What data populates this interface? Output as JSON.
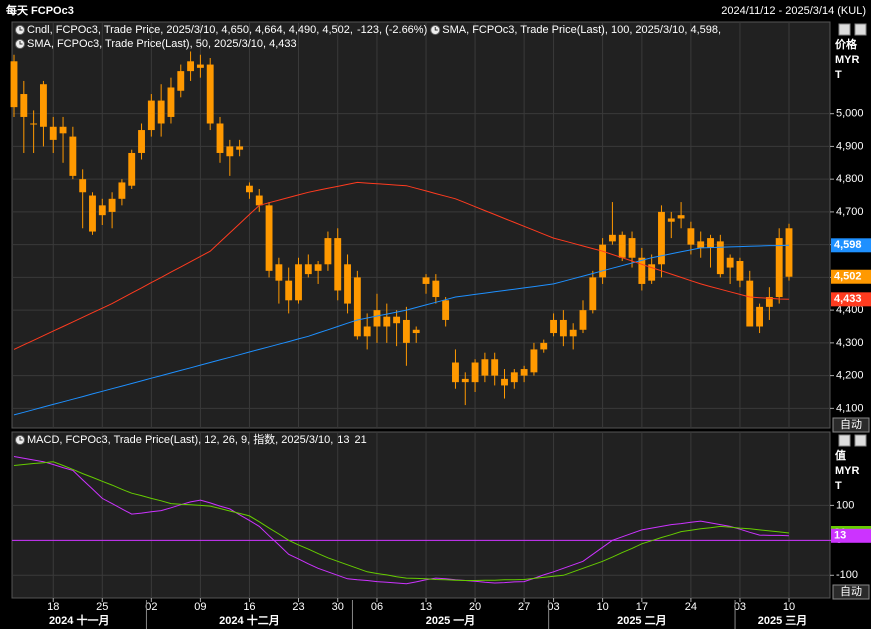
{
  "header": {
    "title": "每天 FCPOc3",
    "range": "2024/11/12 - 2025/3/14 (KUL)"
  },
  "chart_data": [
    {
      "type": "candlestick",
      "legend": [
        {
          "text": "Cndl, FCPOc3, Trade Price, 2025/3/10, 4,650, 4,664, 4,490, 4,502,",
          "color": "#ff9a1f"
        },
        {
          "text": "-123, (-2.66%)",
          "color": "#ff3030"
        }
      ],
      "y_unit": [
        "价格",
        "MYR",
        "T"
      ],
      "autoscale_label": "自动",
      "categories": [
        null,
        null,
        null,
        null,
        "18",
        null,
        null,
        null,
        null,
        "25",
        null,
        null,
        null,
        null,
        "02",
        null,
        null,
        null,
        null,
        "09",
        null,
        null,
        null,
        null,
        "16",
        null,
        null,
        null,
        null,
        "23",
        null,
        null,
        null,
        "30",
        null,
        null,
        null,
        "06",
        null,
        null,
        null,
        null,
        "13",
        null,
        null,
        null,
        null,
        "20",
        null,
        null,
        null,
        null,
        "27",
        null,
        null,
        "03",
        null,
        null,
        null,
        null,
        "10",
        null,
        null,
        null,
        "17",
        null,
        null,
        null,
        null,
        "24",
        null,
        null,
        null,
        null,
        "03",
        null,
        null,
        null,
        null,
        "10"
      ],
      "months": [
        "2024 十一月",
        "2024 十二月",
        "2025 一月",
        "2025 二月",
        "2025 三月"
      ],
      "color": "#ff9900",
      "last_label": "4,502",
      "open": [
        5160,
        5060,
        4970,
        4960,
        4960,
        4940,
        4930,
        4800,
        4750,
        4690,
        4700,
        4740,
        4780,
        4880,
        4950,
        5040,
        4990,
        5070,
        5130,
        5150,
        5150,
        4970,
        4870,
        4900,
        4780,
        4750,
        4720,
        4540,
        4490,
        4430,
        4540,
        4520,
        4540,
        4620,
        4540,
        4500,
        4320,
        4350,
        4380,
        4360,
        4370,
        4330,
        4480,
        4490,
        4430,
        4240,
        4190,
        4180,
        4250,
        4200,
        4190,
        4180,
        4200,
        4210,
        4280,
        4330,
        4370,
        4320,
        4340,
        4400,
        4500,
        4610,
        4630,
        4560,
        4560,
        4490,
        4540,
        4670,
        4680,
        4650,
        4610,
        4590,
        4610,
        4530,
        4550,
        4490,
        4350,
        4410,
        4440,
        4650
      ],
      "high": [
        5180,
        5100,
        5010,
        5100,
        4990,
        4990,
        4960,
        4830,
        4760,
        4740,
        4760,
        4800,
        4890,
        4970,
        5060,
        5090,
        5110,
        5150,
        5190,
        5180,
        5170,
        4990,
        4920,
        4920,
        4790,
        4770,
        4730,
        4560,
        4530,
        4560,
        4570,
        4550,
        4640,
        4650,
        4570,
        4520,
        4390,
        4450,
        4420,
        4400,
        4410,
        4350,
        4510,
        4510,
        4440,
        4280,
        4210,
        4250,
        4270,
        4270,
        4220,
        4220,
        4230,
        4300,
        4310,
        4390,
        4400,
        4360,
        4430,
        4520,
        4620,
        4730,
        4640,
        4640,
        4590,
        4570,
        4720,
        4700,
        4730,
        4670,
        4640,
        4630,
        4630,
        4570,
        4560,
        4520,
        4420,
        4470,
        4650,
        4664
      ],
      "low": [
        4990,
        4880,
        4880,
        4900,
        4880,
        4850,
        4800,
        4650,
        4630,
        4660,
        4650,
        4720,
        4770,
        4860,
        4930,
        4930,
        4970,
        5050,
        5100,
        5110,
        4950,
        4850,
        4810,
        4870,
        4740,
        4700,
        4500,
        4420,
        4390,
        4420,
        4500,
        4480,
        4520,
        4430,
        4390,
        4310,
        4280,
        4300,
        4300,
        4290,
        4230,
        4300,
        4450,
        4420,
        4350,
        4160,
        4110,
        4150,
        4180,
        4170,
        4130,
        4160,
        4180,
        4200,
        4270,
        4320,
        4290,
        4280,
        4330,
        4390,
        4480,
        4600,
        4550,
        4530,
        4460,
        4480,
        4500,
        4620,
        4650,
        4570,
        4560,
        4530,
        4500,
        4480,
        4470,
        4350,
        4330,
        4370,
        4420,
        4490
      ],
      "close": [
        5020,
        4990,
        4970,
        5090,
        4920,
        4960,
        4810,
        4760,
        4640,
        4720,
        4740,
        4790,
        4880,
        4950,
        5040,
        4970,
        5080,
        5130,
        5160,
        5140,
        4970,
        4880,
        4900,
        4890,
        4760,
        4720,
        4520,
        4490,
        4430,
        4540,
        4510,
        4540,
        4620,
        4460,
        4420,
        4320,
        4350,
        4400,
        4350,
        4380,
        4300,
        4340,
        4500,
        4440,
        4370,
        4180,
        4180,
        4240,
        4200,
        4250,
        4170,
        4210,
        4220,
        4280,
        4300,
        4370,
        4320,
        4340,
        4400,
        4500,
        4600,
        4630,
        4560,
        4620,
        4480,
        4540,
        4700,
        4680,
        4690,
        4600,
        4590,
        4620,
        4510,
        4560,
        4490,
        4350,
        4410,
        4440,
        4620,
        4502
      ],
      "series": [
        {
          "name": "SMA, FCPOc3, Trade Price(Last), 100, 2025/3/10, 4,598,",
          "color": "#1e90ff",
          "last_label": "4,598",
          "values": [
            4080,
            4088,
            4096,
            4104,
            4112,
            4120,
            4128,
            4136,
            4144,
            4152,
            4160,
            4168,
            4176,
            4184,
            4192,
            4200,
            4208,
            4216,
            4224,
            4232,
            4240,
            4248,
            4256,
            4264,
            4272,
            4280,
            4288,
            4296,
            4304,
            4312,
            4320,
            4330,
            4340,
            4350,
            4360,
            4370,
            4376,
            4382,
            4388,
            4394,
            4400,
            4408,
            4416,
            4424,
            4432,
            4440,
            4444,
            4448,
            4452,
            4456,
            4460,
            4464,
            4468,
            4472,
            4476,
            4480,
            4488,
            4496,
            4504,
            4512,
            4520,
            4528,
            4536,
            4544,
            4552,
            4560,
            4566,
            4572,
            4578,
            4584,
            4590,
            4591,
            4592,
            4593,
            4594,
            4595,
            4596,
            4597,
            4597,
            4598
          ]
        },
        {
          "name": "SMA, FCPOc3, Trade Price(Last), 50, 2025/3/10, 4,433",
          "color": "#ff3b1f",
          "last_label": "4,433",
          "values": [
            4280,
            4294,
            4308,
            4322,
            4336,
            4350,
            4364,
            4378,
            4392,
            4406,
            4420,
            4436,
            4452,
            4468,
            4484,
            4500,
            4516,
            4532,
            4548,
            4564,
            4580,
            4608,
            4636,
            4664,
            4692,
            4720,
            4728,
            4736,
            4744,
            4752,
            4760,
            4766,
            4772,
            4778,
            4784,
            4790,
            4788,
            4786,
            4784,
            4782,
            4780,
            4772,
            4764,
            4756,
            4748,
            4740,
            4728,
            4716,
            4704,
            4692,
            4680,
            4668,
            4656,
            4644,
            4632,
            4620,
            4612,
            4604,
            4596,
            4588,
            4580,
            4570,
            4560,
            4550,
            4540,
            4530,
            4520,
            4510,
            4500,
            4490,
            4480,
            4472,
            4464,
            4456,
            4448,
            4440,
            4438,
            4436,
            4434,
            4433
          ]
        }
      ],
      "ylim": [
        4040,
        5280
      ],
      "yticks": [
        {
          "value": 4100,
          "label": "4,100"
        },
        {
          "value": 4200,
          "label": "4,200"
        },
        {
          "value": 4300,
          "label": "4,300"
        },
        {
          "value": 4400,
          "label": "4,400"
        },
        {
          "value": 4500,
          "label": "4,500"
        },
        {
          "value": 4600,
          "label": "4,600"
        },
        {
          "value": 4700,
          "label": "4,700"
        },
        {
          "value": 4800,
          "label": "4,800"
        },
        {
          "value": 4900,
          "label": "4,900"
        },
        {
          "value": 5000,
          "label": "5,000"
        }
      ],
      "grid": true
    },
    {
      "type": "line",
      "legend": "MACD, FCPOc3, Trade Price(Last), 12, 26, 9, 指数, 2025/3/10,",
      "legend_color": "#cc44ff",
      "y_unit": [
        "值",
        "MYR",
        "T"
      ],
      "autoscale_label": "自动",
      "zero_color": "#cc33ff",
      "series": [
        {
          "color": "#cc33ff",
          "values": [
            240,
            235,
            230,
            225,
            217,
            208,
            200,
            173,
            147,
            120,
            105,
            90,
            75,
            78,
            82,
            85,
            93,
            102,
            110,
            115,
            107,
            98,
            90,
            73,
            57,
            40,
            13,
            -13,
            -40,
            -53,
            -67,
            -80,
            -90,
            -100,
            -110,
            -113,
            -115,
            -118,
            -120,
            -122,
            -124,
            -119,
            -113,
            -108,
            -110,
            -113,
            -115,
            -117,
            -120,
            -122,
            -121,
            -119,
            -118,
            -109,
            -99,
            -90,
            -80,
            -70,
            -60,
            -40,
            -20,
            0,
            10,
            20,
            30,
            35,
            40,
            45,
            48,
            52,
            55,
            50,
            45,
            40,
            32,
            23,
            15,
            14,
            14,
            13
          ]
        },
        {
          "color": "#66cc00",
          "values": [
            214,
            217,
            220,
            222,
            225,
            214,
            203,
            191,
            180,
            169,
            158,
            146,
            135,
            128,
            120,
            113,
            105,
            103,
            102,
            100,
            98,
            91,
            84,
            77,
            70,
            53,
            35,
            18,
            0,
            -13,
            -25,
            -38,
            -50,
            -60,
            -70,
            -80,
            -90,
            -95,
            -99,
            -104,
            -108,
            -109,
            -110,
            -112,
            -113,
            -114,
            -115,
            -115,
            -114,
            -114,
            -113,
            -113,
            -112,
            -109,
            -106,
            -103,
            -100,
            -90,
            -80,
            -70,
            -60,
            -48,
            -35,
            -23,
            -10,
            -1,
            8,
            16,
            25,
            29,
            33,
            36,
            40,
            38,
            35,
            33,
            30,
            27,
            24,
            21
          ]
        }
      ],
      "ylim": [
        -165,
        310
      ],
      "yticks": [
        100,
        0,
        -100
      ],
      "grid": true
    }
  ]
}
